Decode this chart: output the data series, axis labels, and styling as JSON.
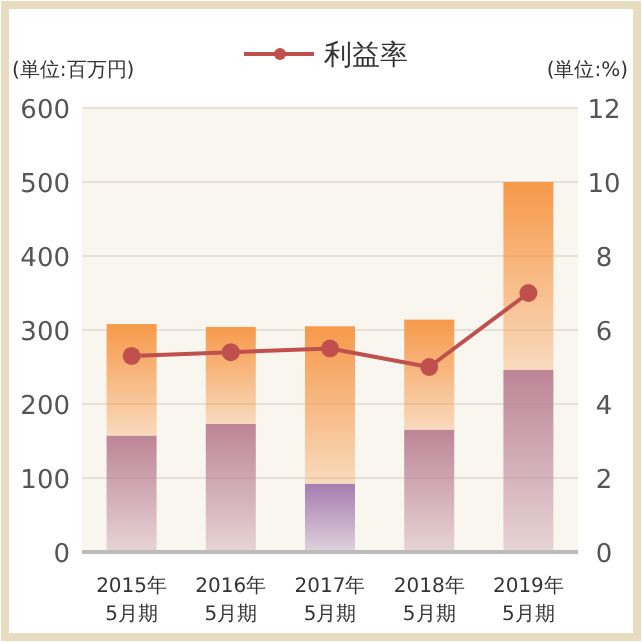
{
  "chart_data": {
    "type": "bar",
    "stacked": true,
    "categories": [
      "2015年\n5月期",
      "2016年\n5月期",
      "2017年\n5月期",
      "2018年\n5月期",
      "2019年\n5月期"
    ],
    "ylabel": "(単位:百万円)",
    "y2label": "(単位:%)",
    "ylim": [
      0,
      600
    ],
    "yticks": [
      0,
      100,
      200,
      300,
      400,
      500,
      600
    ],
    "y2lim": [
      0,
      12
    ],
    "y2ticks": [
      0,
      2,
      4,
      6,
      8,
      10,
      12
    ],
    "grid": "y",
    "legend": "top",
    "series": [
      {
        "colors": [
          "#bd8597",
          "#bd8597",
          "#a57db0",
          "#bd8597",
          "#bd8597"
        ],
        "values": [
          157,
          173,
          92,
          165,
          246
        ]
      },
      {
        "color": "#f7994a",
        "values": [
          151,
          131,
          213,
          149,
          254
        ]
      },
      {
        "name": "利益率",
        "type": "line",
        "axis": "y2",
        "color": "#c0504d",
        "marker": "circle",
        "values": [
          5.3,
          5.4,
          5.5,
          5.0,
          7.0
        ]
      }
    ]
  }
}
